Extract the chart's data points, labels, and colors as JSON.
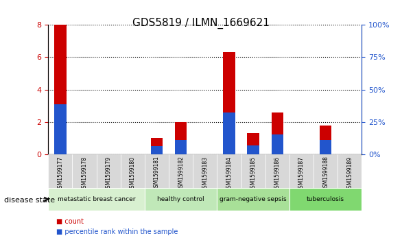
{
  "title": "GDS5819 / ILMN_1669621",
  "samples": [
    "GSM1599177",
    "GSM1599178",
    "GSM1599179",
    "GSM1599180",
    "GSM1599181",
    "GSM1599182",
    "GSM1599183",
    "GSM1599184",
    "GSM1599185",
    "GSM1599186",
    "GSM1599187",
    "GSM1599188",
    "GSM1599189"
  ],
  "count_values": [
    8.0,
    0.0,
    0.0,
    0.0,
    1.0,
    2.0,
    0.0,
    6.3,
    1.3,
    2.6,
    0.0,
    1.8,
    0.0
  ],
  "percentile_values": [
    3.1,
    0.0,
    0.0,
    0.0,
    0.5,
    0.9,
    0.0,
    2.6,
    0.55,
    1.25,
    0.0,
    0.9,
    0.0
  ],
  "bar_color": "#cc0000",
  "blue_color": "#2255cc",
  "ylim": [
    0,
    8
  ],
  "yticks_left": [
    0,
    2,
    4,
    6,
    8
  ],
  "yticks_right": [
    0,
    25,
    50,
    75,
    100
  ],
  "grid_color": "black",
  "disease_groups": [
    {
      "label": "metastatic breast cancer",
      "start": 0,
      "end": 3,
      "color": "#d8f0d0"
    },
    {
      "label": "healthy control",
      "start": 4,
      "end": 6,
      "color": "#c0e8b8"
    },
    {
      "label": "gram-negative sepsis",
      "start": 7,
      "end": 9,
      "color": "#a8e098"
    },
    {
      "label": "tuberculosis",
      "start": 10,
      "end": 12,
      "color": "#80d870"
    }
  ],
  "disease_state_label": "disease state",
  "legend_count_label": "count",
  "legend_pct_label": "percentile rank within the sample",
  "bar_width": 0.5,
  "left_yaxis_color": "#cc0000",
  "right_yaxis_color": "#2255cc",
  "bg_color": "#ffffff",
  "tick_label_bg": "#d8d8d8"
}
